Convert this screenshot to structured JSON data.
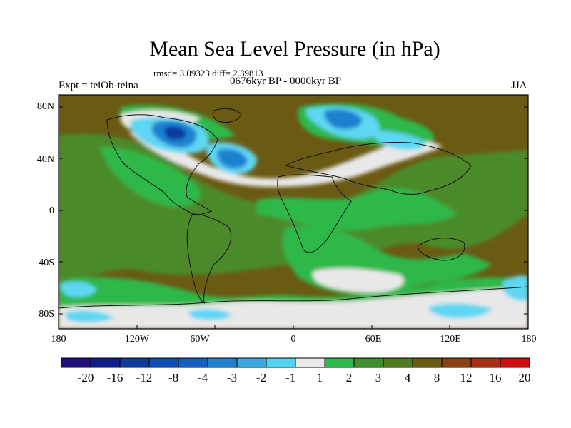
{
  "title": "Mean Sea Level Pressure (in hPa)",
  "stats": "rmsd= 3.09323  diff= 2.39813",
  "period": "0676kyr BP - 0000kyr BP",
  "experiment": "Expt = teiOb-teina",
  "season": "JJA",
  "map": {
    "lat_ticks": [
      "80N",
      "40N",
      "0",
      "40S",
      "80S"
    ],
    "lon_ticks": [
      "180",
      "120W",
      "60W",
      "0",
      "60E",
      "120E",
      "180"
    ],
    "colors": {
      "background_anomaly": "#6b5a14",
      "ocean_green": "#2db84a",
      "mid_green": "#4c8a2c",
      "light_blue": "#5fd7f2",
      "near_zero": "#e8e8e8"
    }
  },
  "colorbar": {
    "labels": [
      "-20",
      "-16",
      "-12",
      "-8",
      "-4",
      "-3",
      "-2",
      "-1",
      "1",
      "2",
      "3",
      "4",
      "8",
      "12",
      "16",
      "20"
    ],
    "colors": [
      "#1e0f7a",
      "#0f1e8c",
      "#0f3b9e",
      "#0f4fb5",
      "#145fc0",
      "#1f82d0",
      "#39a9e0",
      "#52d3ef",
      "#e9e9e9",
      "#2cb84a",
      "#3f8f2c",
      "#4f7a20",
      "#6b5a14",
      "#8a4214",
      "#a82f14",
      "#cc0f0f"
    ]
  }
}
